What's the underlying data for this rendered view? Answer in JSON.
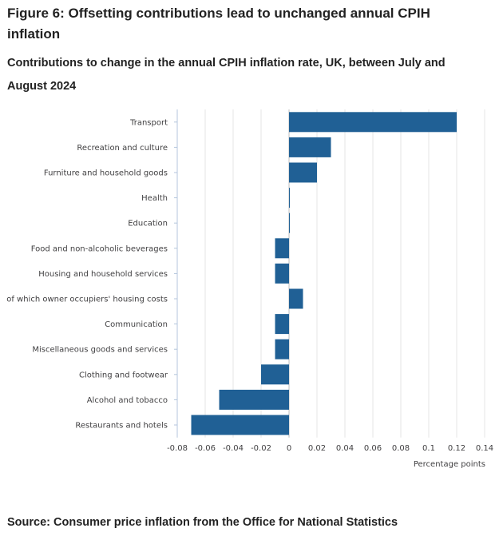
{
  "figure": {
    "title": "Figure 6: Offsetting contributions lead to unchanged annual CPIH inflation",
    "subtitle": "Contributions to change in the annual CPIH inflation rate, UK, between July and August 2024",
    "source": "Source: Consumer price inflation from the Office for National Statistics"
  },
  "colors": {
    "bar": "#206095",
    "grid": "#e6e6e6",
    "axis": "#b4c6dc",
    "text": "#414042"
  },
  "chart_data": {
    "type": "bar",
    "orientation": "horizontal",
    "title": "Contributions to change in the annual CPIH inflation rate, UK, between July and August 2024",
    "xlabel": "Percentage points",
    "ylabel": "",
    "xlim": [
      -0.08,
      0.14
    ],
    "xticks": [
      -0.08,
      -0.06,
      -0.04,
      -0.02,
      0,
      0.02,
      0.04,
      0.06,
      0.08,
      0.1,
      0.12,
      0.14
    ],
    "xtick_labels": [
      "-0.08",
      "-0.06",
      "-0.04",
      "-0.02",
      "0",
      "0.02",
      "0.04",
      "0.06",
      "0.08",
      "0.1",
      "0.12",
      "0.14"
    ],
    "grid": true,
    "categories": [
      "Transport",
      "Recreation and culture",
      "Furniture and household goods",
      "Health",
      "Education",
      "Food and non-alcoholic beverages",
      "Housing and household services",
      "of which owner occupiers' housing costs",
      "Communication",
      "Miscellaneous goods and services",
      "Clothing and footwear",
      "Alcohol and tobacco",
      "Restaurants and hotels"
    ],
    "values": [
      0.12,
      0.03,
      0.02,
      0.0005,
      0.0005,
      -0.01,
      -0.01,
      0.01,
      -0.01,
      -0.01,
      -0.02,
      -0.05,
      -0.07
    ]
  }
}
